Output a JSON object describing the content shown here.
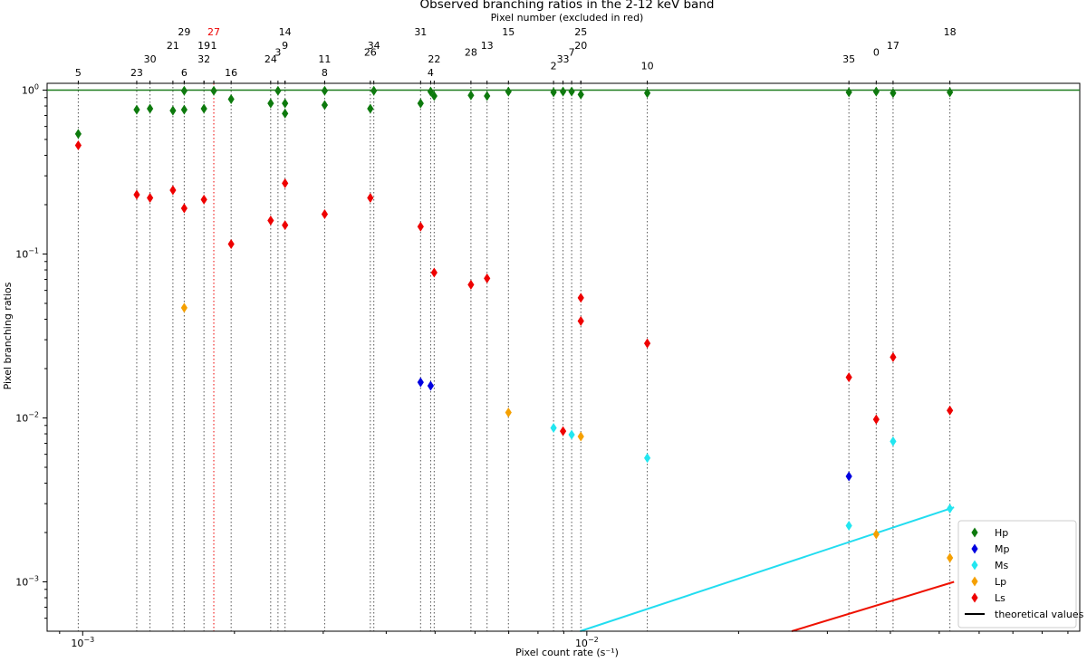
{
  "chart_data": {
    "type": "scatter",
    "title": "Observed branching ratios in the 2-12 keV band",
    "top_axis_label": "Pixel number (excluded in red)",
    "xlabel": "Pixel count rate (s⁻¹)",
    "ylabel": "Pixel branching ratios",
    "xscale": "log",
    "yscale": "log",
    "xlim": [
      0.00085,
      0.095
    ],
    "ylim": [
      0.0005,
      1.1
    ],
    "x_ticks": [
      {
        "value": 0.001,
        "base": "10",
        "exp": "−3"
      },
      {
        "value": 0.01,
        "base": "10",
        "exp": "−2"
      }
    ],
    "y_ticks": [
      {
        "value": 0.001,
        "base": "10",
        "exp": "−3"
      },
      {
        "value": 0.01,
        "base": "10",
        "exp": "−2"
      },
      {
        "value": 0.1,
        "base": "10",
        "exp": "−1"
      },
      {
        "value": 1,
        "base": "10",
        "exp": "0"
      }
    ],
    "grid": false,
    "reference_line": {
      "y": 1.0,
      "color": "#1a7a1a"
    },
    "pixels": [
      {
        "label": "5",
        "x": 0.00098,
        "level": 3,
        "excluded": false
      },
      {
        "label": "23",
        "x": 0.00128,
        "level": 3,
        "excluded": false
      },
      {
        "label": "30",
        "x": 0.00136,
        "level": 4,
        "excluded": false
      },
      {
        "label": "21",
        "x": 0.00151,
        "level": 5,
        "excluded": false
      },
      {
        "label": "6",
        "x": 0.00159,
        "level": 3,
        "excluded": false
      },
      {
        "label": "29",
        "x": 0.00159,
        "level": 6,
        "excluded": false
      },
      {
        "label": "32",
        "x": 0.00174,
        "level": 4,
        "excluded": false
      },
      {
        "label": "19",
        "x": 0.00174,
        "level": 5,
        "excluded": false
      },
      {
        "label": "27",
        "x": 0.00182,
        "level": 6,
        "excluded": true
      },
      {
        "label": "1",
        "x": 0.00182,
        "level": 5,
        "excluded": false
      },
      {
        "label": "16",
        "x": 0.00197,
        "level": 3,
        "excluded": false
      },
      {
        "label": "24",
        "x": 0.00236,
        "level": 4,
        "excluded": false
      },
      {
        "label": "3",
        "x": 0.00244,
        "level": 4.5,
        "excluded": false
      },
      {
        "label": "9",
        "x": 0.00252,
        "level": 5,
        "excluded": false
      },
      {
        "label": "14",
        "x": 0.00252,
        "level": 6,
        "excluded": false
      },
      {
        "label": "11",
        "x": 0.00302,
        "level": 4,
        "excluded": false
      },
      {
        "label": "8",
        "x": 0.00302,
        "level": 3,
        "excluded": false
      },
      {
        "label": "26",
        "x": 0.00372,
        "level": 4.5,
        "excluded": false
      },
      {
        "label": "34",
        "x": 0.00378,
        "level": 5,
        "excluded": false
      },
      {
        "label": "31",
        "x": 0.00468,
        "level": 6,
        "excluded": false
      },
      {
        "label": "4",
        "x": 0.0049,
        "level": 3,
        "excluded": false
      },
      {
        "label": "22",
        "x": 0.00498,
        "level": 4,
        "excluded": false
      },
      {
        "label": "28",
        "x": 0.00589,
        "level": 4.5,
        "excluded": false
      },
      {
        "label": "13",
        "x": 0.00634,
        "level": 5,
        "excluded": false
      },
      {
        "label": "15",
        "x": 0.00699,
        "level": 6,
        "excluded": false
      },
      {
        "label": "2",
        "x": 0.00859,
        "level": 3.5,
        "excluded": false
      },
      {
        "label": "33",
        "x": 0.00897,
        "level": 4,
        "excluded": false
      },
      {
        "label": "7",
        "x": 0.00933,
        "level": 4.5,
        "excluded": false
      },
      {
        "label": "25",
        "x": 0.00973,
        "level": 6,
        "excluded": false
      },
      {
        "label": "20",
        "x": 0.00973,
        "level": 5,
        "excluded": false
      },
      {
        "label": "10",
        "x": 0.01318,
        "level": 3.5,
        "excluded": false
      },
      {
        "label": "35",
        "x": 0.0331,
        "level": 4,
        "excluded": false
      },
      {
        "label": "0",
        "x": 0.0375,
        "level": 4.5,
        "excluded": false
      },
      {
        "label": "17",
        "x": 0.0405,
        "level": 5,
        "excluded": false
      },
      {
        "label": "18",
        "x": 0.0525,
        "level": 6,
        "excluded": false
      }
    ],
    "series": [
      {
        "name": "Hp",
        "color": "#0d7a0d",
        "points": [
          [
            0.00098,
            0.54
          ],
          [
            0.00128,
            0.76
          ],
          [
            0.00136,
            0.77
          ],
          [
            0.00151,
            0.75
          ],
          [
            0.00159,
            0.76
          ],
          [
            0.00159,
            0.99
          ],
          [
            0.00174,
            0.77
          ],
          [
            0.00182,
            0.99
          ],
          [
            0.00197,
            0.88
          ],
          [
            0.00236,
            0.83
          ],
          [
            0.00244,
            0.99
          ],
          [
            0.00252,
            0.83
          ],
          [
            0.00252,
            0.72
          ],
          [
            0.00302,
            0.99
          ],
          [
            0.00302,
            0.81
          ],
          [
            0.00372,
            0.77
          ],
          [
            0.00378,
            0.99
          ],
          [
            0.00468,
            0.83
          ],
          [
            0.0049,
            0.98
          ],
          [
            0.00498,
            0.92
          ],
          [
            0.00589,
            0.93
          ],
          [
            0.00634,
            0.92
          ],
          [
            0.00699,
            0.98
          ],
          [
            0.00859,
            0.97
          ],
          [
            0.00897,
            0.98
          ],
          [
            0.00933,
            0.98
          ],
          [
            0.00973,
            0.94
          ],
          [
            0.01318,
            0.96
          ],
          [
            0.0331,
            0.97
          ],
          [
            0.0375,
            0.98
          ],
          [
            0.0405,
            0.96
          ],
          [
            0.0525,
            0.97
          ]
        ]
      },
      {
        "name": "Mp",
        "color": "#0000e0",
        "points": [
          [
            0.00468,
            0.0165
          ],
          [
            0.0049,
            0.0157
          ],
          [
            0.0331,
            0.0044
          ]
        ]
      },
      {
        "name": "Ms",
        "color": "#22e6f0",
        "points": [
          [
            0.00859,
            0.0087
          ],
          [
            0.00933,
            0.0079
          ],
          [
            0.01318,
            0.0057
          ],
          [
            0.0331,
            0.0022
          ],
          [
            0.0405,
            0.0072
          ],
          [
            0.0525,
            0.0028
          ]
        ]
      },
      {
        "name": "Lp",
        "color": "#f5a000",
        "points": [
          [
            0.00159,
            0.047
          ],
          [
            0.00699,
            0.0108
          ],
          [
            0.00973,
            0.0077
          ],
          [
            0.0375,
            0.00195
          ],
          [
            0.0525,
            0.0014
          ]
        ]
      },
      {
        "name": "Ls",
        "color": "#ee0000",
        "points": [
          [
            0.00098,
            0.46
          ],
          [
            0.00128,
            0.23
          ],
          [
            0.00136,
            0.22
          ],
          [
            0.00151,
            0.245
          ],
          [
            0.00159,
            0.19
          ],
          [
            0.00174,
            0.215
          ],
          [
            0.00197,
            0.115
          ],
          [
            0.00236,
            0.16
          ],
          [
            0.00252,
            0.27
          ],
          [
            0.00252,
            0.15
          ],
          [
            0.00302,
            0.175
          ],
          [
            0.00372,
            0.22
          ],
          [
            0.00468,
            0.147
          ],
          [
            0.00498,
            0.077
          ],
          [
            0.00589,
            0.065
          ],
          [
            0.00634,
            0.071
          ],
          [
            0.00973,
            0.054
          ],
          [
            0.00973,
            0.039
          ],
          [
            0.01318,
            0.0285
          ],
          [
            0.00897,
            0.0083
          ],
          [
            0.0331,
            0.0177
          ],
          [
            0.0375,
            0.0098
          ],
          [
            0.0405,
            0.0235
          ],
          [
            0.0525,
            0.0111
          ]
        ]
      }
    ],
    "theoretical_lines": [
      {
        "color": "#22ddf0",
        "points": [
          [
            0.0097,
            0.0005
          ],
          [
            0.0535,
            0.00285
          ]
        ]
      },
      {
        "color": "#ee1100",
        "points": [
          [
            0.0255,
            0.0005
          ],
          [
            0.0535,
            0.001
          ]
        ]
      }
    ],
    "legend": {
      "position": "bottom-right",
      "entries": [
        {
          "label": "Hp",
          "color": "#0d7a0d",
          "kind": "marker"
        },
        {
          "label": "Mp",
          "color": "#0000e0",
          "kind": "marker"
        },
        {
          "label": "Ms",
          "color": "#22e6f0",
          "kind": "marker"
        },
        {
          "label": "Lp",
          "color": "#f5a000",
          "kind": "marker"
        },
        {
          "label": "Ls",
          "color": "#ee0000",
          "kind": "marker"
        },
        {
          "label": "theoretical values",
          "color": "#000000",
          "kind": "line"
        }
      ]
    }
  }
}
